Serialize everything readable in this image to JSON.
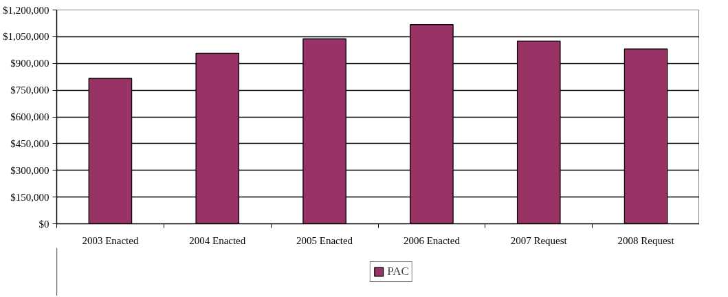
{
  "chart_data": {
    "type": "bar",
    "categories": [
      "2003 Enacted",
      "2004 Enacted",
      "2005 Enacted",
      "2006 Enacted",
      "2007 Request",
      "2008 Request"
    ],
    "series": [
      {
        "name": "PAC",
        "color": "#993366",
        "values": [
          816000,
          957000,
          1038000,
          1118000,
          1025000,
          981000
        ]
      }
    ],
    "ylim": [
      0,
      1200000
    ],
    "yticks": [
      {
        "value": 0,
        "label": "$0"
      },
      {
        "value": 150000,
        "label": "$150,000"
      },
      {
        "value": 300000,
        "label": "$300,000"
      },
      {
        "value": 450000,
        "label": "$450,000"
      },
      {
        "value": 600000,
        "label": "$600,000"
      },
      {
        "value": 750000,
        "label": "$750,000"
      },
      {
        "value": 900000,
        "label": "$900,000"
      },
      {
        "value": 1050000,
        "label": "$1,050,000"
      },
      {
        "value": 1200000,
        "label": "$1,200,000"
      }
    ],
    "grid": "y",
    "legend": "bottom"
  }
}
